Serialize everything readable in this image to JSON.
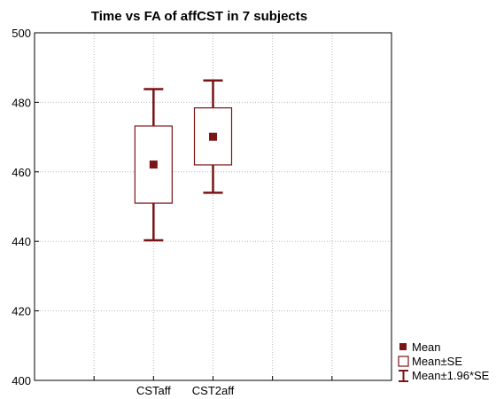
{
  "colors": {
    "mark": "#7a1416",
    "grid": "#b8b8b8",
    "axis": "#000000",
    "background": "#ffffff"
  },
  "chart_data": {
    "type": "box",
    "title": "Time vs FA of affCST in 7 subjects",
    "xlabel": "",
    "ylabel": "",
    "categories": [
      "CSTaff",
      "CST2aff"
    ],
    "ylim": [
      400,
      500
    ],
    "yticks": [
      400,
      420,
      440,
      460,
      480,
      500
    ],
    "grid": true,
    "legend_position": "bottom-right",
    "series": [
      {
        "category": "CSTaff",
        "mean": 462.1,
        "se_low": 451.0,
        "se_high": 473.2,
        "ci_low": 440.3,
        "ci_high": 483.8
      },
      {
        "category": "CST2aff",
        "mean": 470.1,
        "se_low": 462.0,
        "se_high": 478.4,
        "ci_low": 454.0,
        "ci_high": 486.3
      }
    ],
    "legend": [
      {
        "key": "mean",
        "label": "Mean"
      },
      {
        "key": "se",
        "label": "Mean±SE"
      },
      {
        "key": "ci",
        "label": "Mean±1.96*SE"
      }
    ]
  }
}
